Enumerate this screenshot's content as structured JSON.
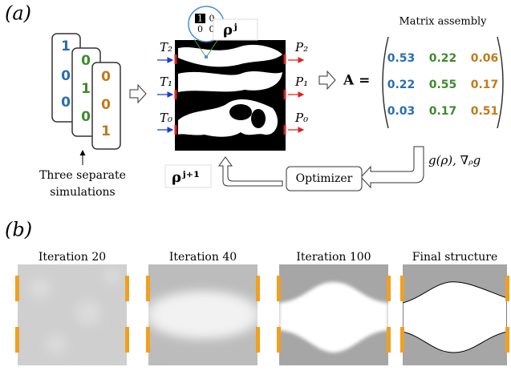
{
  "panel_a": {
    "label": "(a)",
    "simulations": {
      "cards": [
        [
          "1",
          "0",
          "0"
        ],
        [
          "0",
          "1",
          "0"
        ],
        [
          "0",
          "0",
          "1"
        ]
      ],
      "caption": [
        "Three separate",
        "simulations"
      ]
    },
    "design": {
      "density": "ρʲ",
      "inset": [
        "1",
        "0",
        "0",
        "0"
      ],
      "inputs": [
        "T₂",
        "T₁",
        "T₀"
      ],
      "outputs": [
        "P₂",
        "P₁",
        "P₀"
      ]
    },
    "matrix": {
      "title": "Matrix assembly",
      "lhs": "A =",
      "rows": [
        [
          "0.53",
          "0.22",
          "0.06"
        ],
        [
          "0.22",
          "0.55",
          "0.17"
        ],
        [
          "0.03",
          "0.17",
          "0.51"
        ]
      ]
    },
    "gradient": "g(ρ), ∇ᵨg",
    "optimizer": "Optimizer",
    "update": "ρʲ⁺¹"
  },
  "panel_b": {
    "label": "(b)",
    "titles": [
      "Iteration 20",
      "Iteration 40",
      "Iteration 100",
      "Final structure"
    ]
  }
}
